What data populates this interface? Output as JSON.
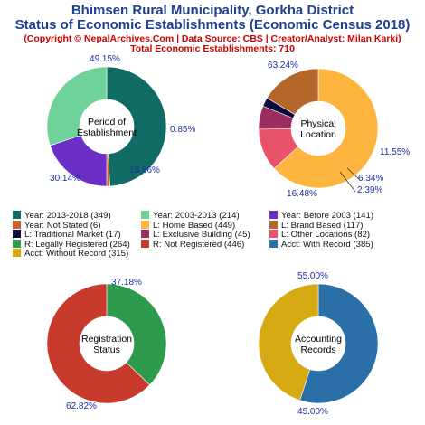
{
  "header": {
    "title_line1": "Bhimsen Rural Municipality, Gorkha District",
    "title_line2": "Status of Economic Establishments (Economic Census 2018)",
    "subtitle_line1": "(Copyright © NepalArchives.Com | Data Source: CBS | Creator/Analyst: Milan Karki)",
    "subtitle_line2": "Total Economic Establishments: 710"
  },
  "chart_data": [
    {
      "type": "pie",
      "title": "Period of Establishment",
      "center_lines": [
        "Period of",
        "Establishment"
      ],
      "slices": [
        {
          "label": "Year: 2013-2018",
          "value": 349,
          "percent_label": "49.15%",
          "color": "#0f6b63"
        },
        {
          "label": "Year: Not Stated",
          "value": 6,
          "percent_label": "0.85%",
          "color": "#c9612f"
        },
        {
          "label": "Year: Before 2003",
          "value": 141,
          "percent_label": "19.86%",
          "color": "#6b2fc8"
        },
        {
          "label": "Year: 2003-2013",
          "value": 214,
          "percent_label": "30.14%",
          "color": "#6fd29a"
        }
      ]
    },
    {
      "type": "pie",
      "title": "Physical Location",
      "center_lines": [
        "Physical",
        "Location"
      ],
      "slices": [
        {
          "label": "L: Home Based",
          "value": 449,
          "percent_label": "63.24%",
          "color": "#fdb53f"
        },
        {
          "label": "L: Other Locations",
          "value": 82,
          "percent_label": "11.55%",
          "color": "#e8536a"
        },
        {
          "label": "L: Exclusive Building",
          "value": 45,
          "percent_label": "6.34%",
          "color": "#9a2f5f"
        },
        {
          "label": "L: Traditional Market",
          "value": 17,
          "percent_label": "2.39%",
          "color": "#0d0a40"
        },
        {
          "label": "L: Brand Based",
          "value": 117,
          "percent_label": "16.48%",
          "color": "#b5662b"
        }
      ]
    },
    {
      "type": "pie",
      "title": "Registration Status",
      "center_lines": [
        "Registration",
        "Status"
      ],
      "slices": [
        {
          "label": "R: Legally Registered",
          "value": 264,
          "percent_label": "37.18%",
          "color": "#2e9a4d"
        },
        {
          "label": "R: Not Registered",
          "value": 446,
          "percent_label": "62.82%",
          "color": "#c73a2c"
        }
      ]
    },
    {
      "type": "pie",
      "title": "Accounting Records",
      "center_lines": [
        "Accounting",
        "Records"
      ],
      "slices": [
        {
          "label": "Acct: With Record",
          "value": 385,
          "percent_label": "55.00%",
          "color": "#2a6fa8"
        },
        {
          "label": "Acct: Without Record",
          "value": 315,
          "percent_label": "45.00%",
          "color": "#d6aa12"
        }
      ]
    }
  ],
  "legend": [
    {
      "text": "Year: 2013-2018 (349)",
      "color": "#0f6b63"
    },
    {
      "text": "Year: 2003-2013 (214)",
      "color": "#6fd29a"
    },
    {
      "text": "Year: Before 2003 (141)",
      "color": "#6b2fc8"
    },
    {
      "text": "Year: Not Stated (6)",
      "color": "#c9612f"
    },
    {
      "text": "L: Home Based (449)",
      "color": "#fdb53f"
    },
    {
      "text": "L: Brand Based (117)",
      "color": "#b5662b"
    },
    {
      "text": "L: Traditional Market (17)",
      "color": "#0d0a40"
    },
    {
      "text": "L: Exclusive Building (45)",
      "color": "#9a2f5f"
    },
    {
      "text": "L: Other Locations (82)",
      "color": "#e8536a"
    },
    {
      "text": "R: Legally Registered (264)",
      "color": "#2e9a4d"
    },
    {
      "text": "R: Not Registered (446)",
      "color": "#c73a2c"
    },
    {
      "text": "Acct: With Record (385)",
      "color": "#2a6fa8"
    },
    {
      "text": "Acct: Without Record (315)",
      "color": "#d6aa12"
    }
  ]
}
